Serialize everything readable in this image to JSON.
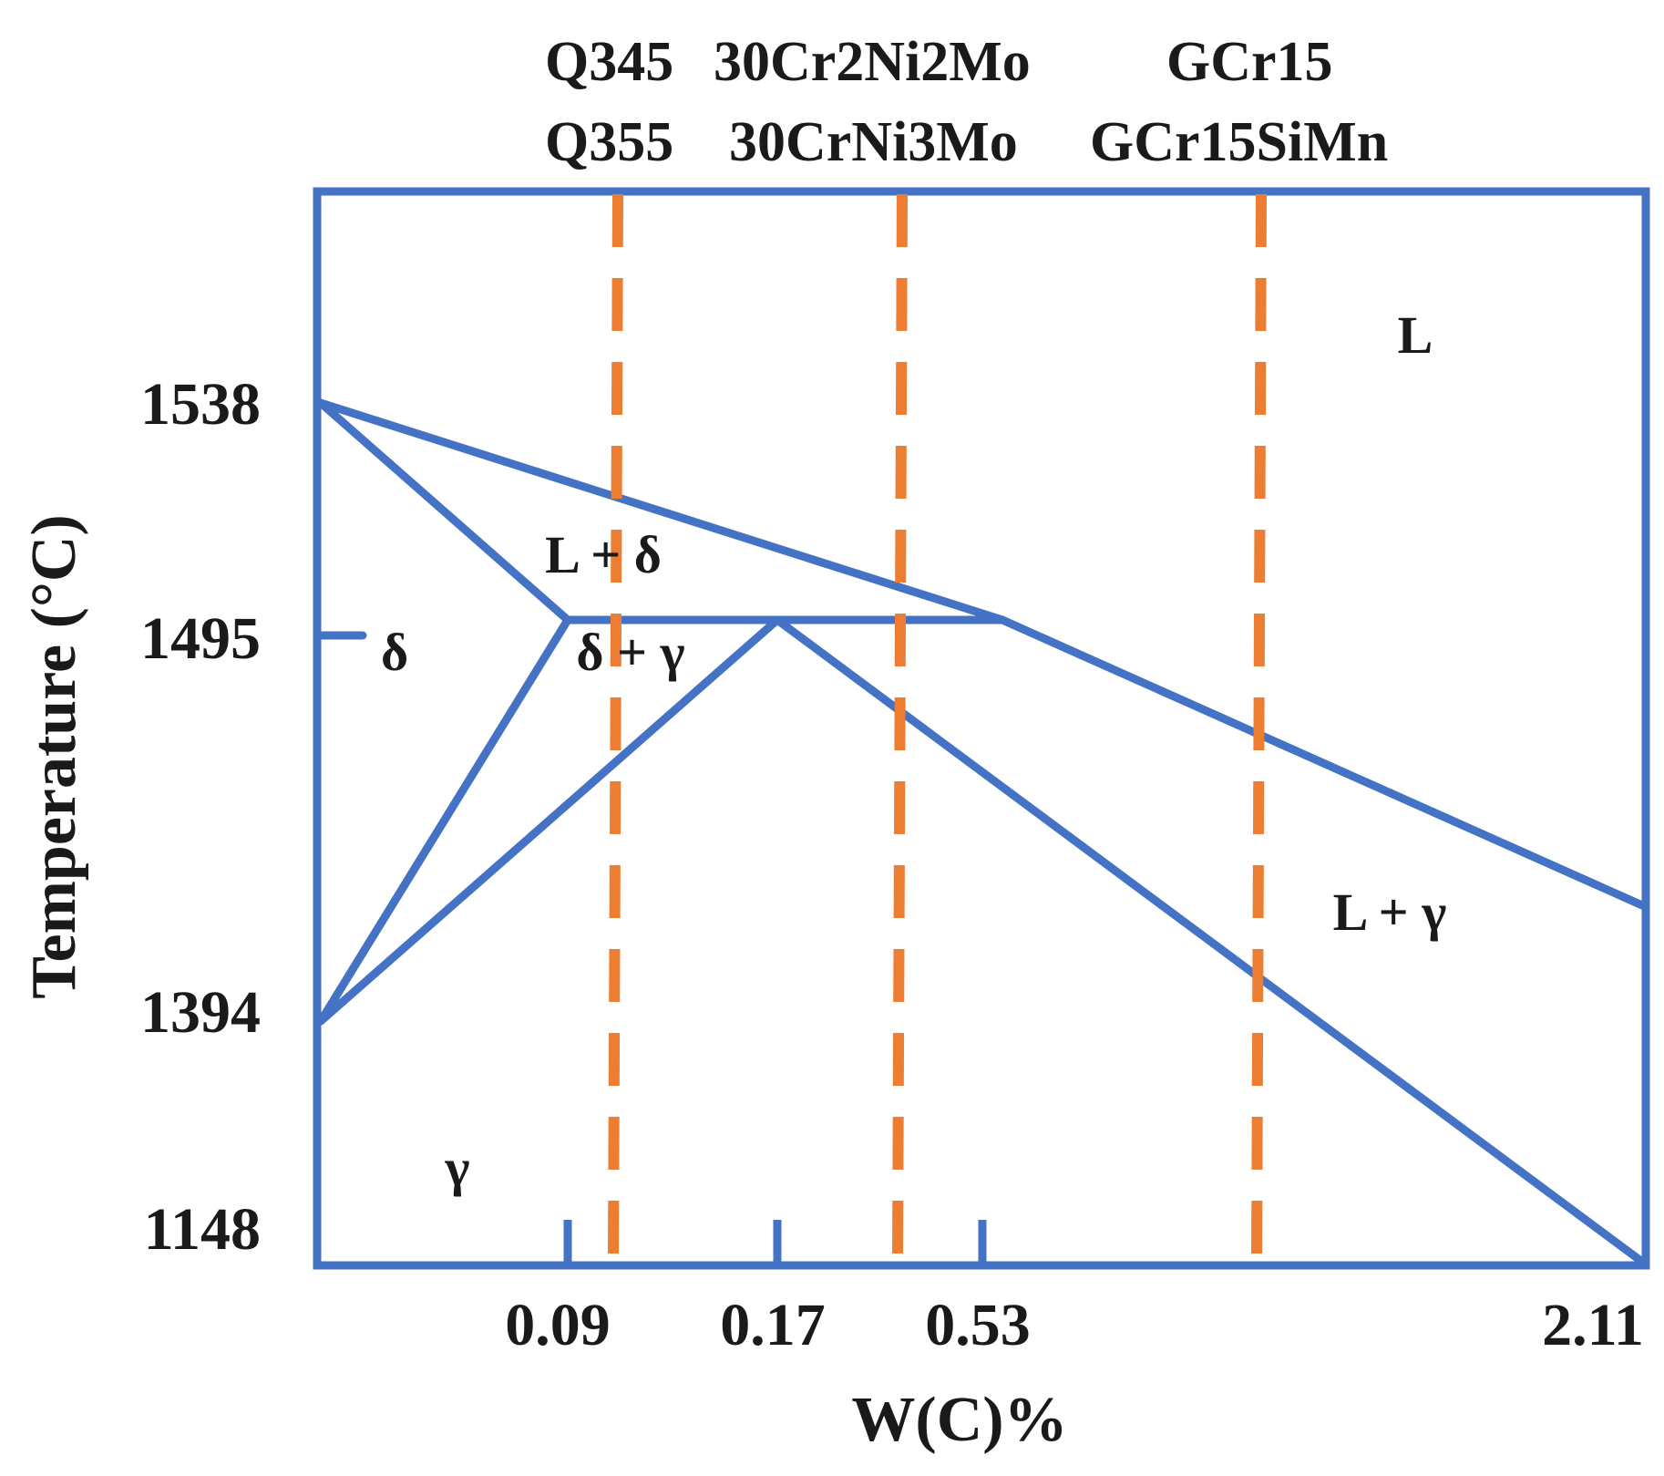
{
  "colors": {
    "boundary": "#4472C4",
    "steel_lines": "#ED7D31",
    "text": "#1a1a1a",
    "background": "#ffffff"
  },
  "steel_groups": [
    {
      "line1": "Q345",
      "line2": "Q355"
    },
    {
      "line1": "30Cr2Ni2Mo",
      "line2": "30CrNi3Mo"
    },
    {
      "line1": "GCr15",
      "line2": "GCr15SiMn"
    }
  ],
  "y_axis": {
    "title": "Temperature (°C)",
    "ticks": [
      "1538",
      "1495",
      "1394",
      "1148"
    ]
  },
  "x_axis": {
    "title": "W(C)%",
    "ticks": [
      "0.09",
      "0.17",
      "0.53",
      "2.11"
    ]
  },
  "phases": {
    "liquid": "L",
    "liquid_delta": "L + δ",
    "delta": "δ",
    "delta_gamma": "δ + γ",
    "liquid_gamma": "L + γ",
    "gamma": "γ"
  }
}
